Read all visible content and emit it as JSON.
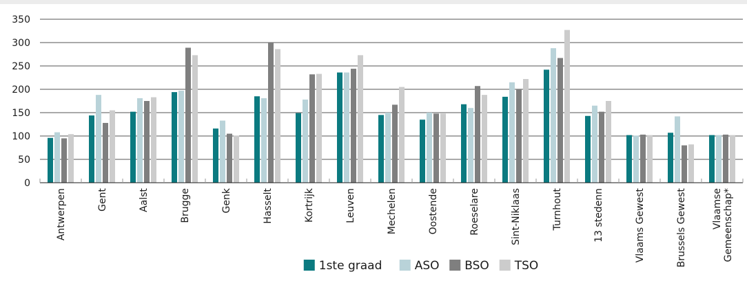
{
  "chart_data": {
    "type": "bar",
    "categories": [
      "Antwerpen",
      "Gent",
      "Aalst",
      "Brugge",
      "Genk",
      "Hasselt",
      "Kortrijk",
      "Leuven",
      "Mechelen",
      "Oostende",
      "Roeselare",
      "Sint-Niklaas",
      "Turnhout",
      "13 stedenn",
      "Vlaams Gewest",
      "Brussels Gewest",
      "Vlaamse Gemeenschap*"
    ],
    "series": [
      {
        "name": "1ste graad",
        "color": "#0b7a80",
        "values": [
          96,
          144,
          152,
          194,
          116,
          185,
          149,
          236,
          145,
          135,
          168,
          184,
          242,
          143,
          102,
          107,
          102
        ]
      },
      {
        "name": "ASO",
        "color": "#b9d3d9",
        "values": [
          108,
          188,
          181,
          197,
          133,
          181,
          178,
          236,
          150,
          150,
          160,
          215,
          288,
          165,
          101,
          142,
          102
        ]
      },
      {
        "name": "BSO",
        "color": "#7f7f7f",
        "values": [
          95,
          128,
          175,
          289,
          105,
          301,
          232,
          244,
          167,
          148,
          207,
          201,
          267,
          152,
          103,
          80,
          103
        ]
      },
      {
        "name": "TSO",
        "color": "#cccccc",
        "values": [
          104,
          155,
          183,
          273,
          101,
          286,
          233,
          273,
          205,
          148,
          188,
          222,
          327,
          175,
          102,
          82,
          102
        ]
      }
    ],
    "title": "",
    "xlabel": "",
    "ylabel": "",
    "ylim": [
      0,
      350
    ],
    "yticks": [
      "0",
      "50",
      "100",
      "150",
      "200",
      "250",
      "300",
      "350"
    ],
    "grid": true,
    "legend_position": "bottom"
  }
}
